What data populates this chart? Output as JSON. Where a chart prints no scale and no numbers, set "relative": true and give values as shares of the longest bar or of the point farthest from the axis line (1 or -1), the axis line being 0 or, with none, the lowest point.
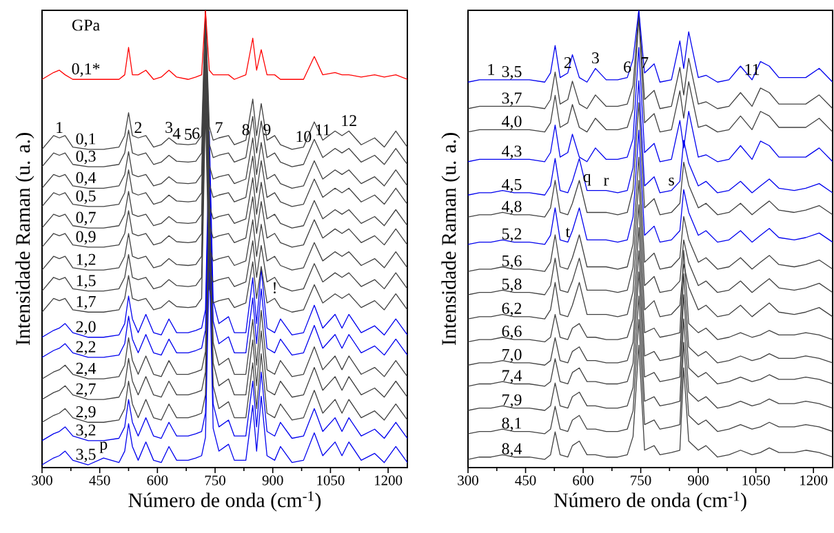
{
  "chart_data": [
    {
      "type": "line",
      "relative": true,
      "legend_title": "GPa",
      "xlabel": "Número de onda (cm$^{-1}$)",
      "ylabel": "Intensidade Raman (u. a.)",
      "xlim": [
        300,
        1250
      ],
      "xticks": [
        300,
        450,
        600,
        750,
        900,
        1050,
        1200
      ],
      "x": [
        300,
        330,
        345,
        360,
        380,
        420,
        460,
        500,
        515,
        525,
        535,
        550,
        570,
        590,
        610,
        630,
        650,
        680,
        700,
        715,
        725,
        735,
        745,
        760,
        785,
        800,
        830,
        848,
        858,
        870,
        885,
        905,
        920,
        950,
        980,
        1008,
        1030,
        1062,
        1080,
        1098,
        1130,
        1165,
        1190,
        1220,
        1250
      ],
      "series": [
        {
          "name": "0,1*",
          "color": "#ff0000",
          "values": [
            0.849,
            0.864,
            0.869,
            0.859,
            0.849,
            0.849,
            0.849,
            0.849,
            0.859,
            0.919,
            0.859,
            0.859,
            0.869,
            0.849,
            0.854,
            0.869,
            0.854,
            0.849,
            0.854,
            0.859,
            1,
            0.869,
            0.859,
            0.859,
            0.859,
            0.849,
            0.859,
            0.939,
            0.869,
            0.914,
            0.859,
            0.859,
            0.849,
            0.849,
            0.849,
            0.899,
            0.859,
            0.864,
            0.859,
            0.859,
            0.854,
            0.859,
            0.854,
            0.859,
            0.849
          ]
        },
        {
          "name": "0,1",
          "color": "#404040",
          "values": [
            0.696,
            0.726,
            0.721,
            0.726,
            0.701,
            0.696,
            0.696,
            0.701,
            0.726,
            0.776,
            0.726,
            0.721,
            0.726,
            0.701,
            0.706,
            0.721,
            0.708,
            0.706,
            0.708,
            0.726,
            1,
            0.746,
            0.716,
            0.721,
            0.726,
            0.706,
            0.716,
            0.806,
            0.726,
            0.796,
            0.716,
            0.726,
            0.706,
            0.696,
            0.701,
            0.756,
            0.716,
            0.736,
            0.726,
            0.736,
            0.706,
            0.721,
            0.701,
            0.736,
            0.701
          ]
        },
        {
          "name": "0,3",
          "color": "#404040",
          "values": [
            0.658,
            0.688,
            0.683,
            0.688,
            0.663,
            0.658,
            0.658,
            0.663,
            0.688,
            0.738,
            0.688,
            0.683,
            0.688,
            0.663,
            0.668,
            0.683,
            0.67,
            0.668,
            0.67,
            0.688,
            1,
            0.708,
            0.678,
            0.683,
            0.688,
            0.668,
            0.678,
            0.768,
            0.688,
            0.758,
            0.678,
            0.688,
            0.668,
            0.658,
            0.663,
            0.718,
            0.678,
            0.698,
            0.688,
            0.698,
            0.668,
            0.683,
            0.663,
            0.698,
            0.663
          ]
        },
        {
          "name": "0,4",
          "color": "#404040",
          "values": [
            0.611,
            0.641,
            0.636,
            0.641,
            0.616,
            0.611,
            0.611,
            0.616,
            0.641,
            0.691,
            0.641,
            0.636,
            0.641,
            0.616,
            0.621,
            0.636,
            0.623,
            0.621,
            0.623,
            0.641,
            1,
            0.661,
            0.631,
            0.636,
            0.641,
            0.621,
            0.631,
            0.721,
            0.641,
            0.711,
            0.631,
            0.641,
            0.621,
            0.611,
            0.616,
            0.671,
            0.631,
            0.651,
            0.641,
            0.651,
            0.621,
            0.636,
            0.616,
            0.651,
            0.616
          ]
        },
        {
          "name": "0,5",
          "color": "#404040",
          "values": [
            0.571,
            0.601,
            0.596,
            0.601,
            0.576,
            0.571,
            0.571,
            0.576,
            0.601,
            0.651,
            0.601,
            0.596,
            0.601,
            0.576,
            0.581,
            0.596,
            0.583,
            0.581,
            0.583,
            0.601,
            1,
            0.621,
            0.591,
            0.596,
            0.601,
            0.581,
            0.591,
            0.681,
            0.601,
            0.671,
            0.591,
            0.601,
            0.581,
            0.571,
            0.576,
            0.631,
            0.591,
            0.611,
            0.601,
            0.611,
            0.581,
            0.596,
            0.576,
            0.611,
            0.576
          ]
        },
        {
          "name": "0,7",
          "color": "#404040",
          "values": [
            0.524,
            0.554,
            0.549,
            0.554,
            0.529,
            0.524,
            0.524,
            0.529,
            0.554,
            0.604,
            0.554,
            0.549,
            0.554,
            0.529,
            0.534,
            0.549,
            0.536,
            0.534,
            0.536,
            0.554,
            0.974,
            0.574,
            0.544,
            0.549,
            0.554,
            0.534,
            0.544,
            0.634,
            0.554,
            0.624,
            0.544,
            0.554,
            0.534,
            0.524,
            0.529,
            0.584,
            0.544,
            0.564,
            0.554,
            0.564,
            0.534,
            0.549,
            0.529,
            0.564,
            0.529
          ]
        },
        {
          "name": "0,9",
          "color": "#404040",
          "values": [
            0.482,
            0.512,
            0.507,
            0.512,
            0.487,
            0.482,
            0.482,
            0.487,
            0.512,
            0.562,
            0.512,
            0.507,
            0.512,
            0.487,
            0.492,
            0.507,
            0.494,
            0.492,
            0.494,
            0.512,
            0.932,
            0.532,
            0.502,
            0.507,
            0.512,
            0.492,
            0.502,
            0.592,
            0.512,
            0.582,
            0.502,
            0.512,
            0.492,
            0.482,
            0.487,
            0.542,
            0.502,
            0.522,
            0.512,
            0.522,
            0.492,
            0.507,
            0.487,
            0.522,
            0.487
          ]
        },
        {
          "name": "1,2",
          "color": "#404040",
          "values": [
            0.432,
            0.462,
            0.457,
            0.462,
            0.437,
            0.432,
            0.432,
            0.437,
            0.462,
            0.512,
            0.462,
            0.457,
            0.462,
            0.437,
            0.442,
            0.457,
            0.444,
            0.442,
            0.444,
            0.462,
            0.882,
            0.482,
            0.452,
            0.457,
            0.462,
            0.442,
            0.452,
            0.542,
            0.462,
            0.532,
            0.452,
            0.462,
            0.442,
            0.432,
            0.437,
            0.492,
            0.452,
            0.472,
            0.462,
            0.472,
            0.442,
            0.457,
            0.437,
            0.472,
            0.437
          ]
        },
        {
          "name": "1,5",
          "color": "#404040",
          "values": [
            0.386,
            0.416,
            0.411,
            0.416,
            0.391,
            0.386,
            0.386,
            0.391,
            0.416,
            0.466,
            0.416,
            0.411,
            0.416,
            0.391,
            0.396,
            0.411,
            0.398,
            0.396,
            0.398,
            0.416,
            0.836,
            0.436,
            0.406,
            0.411,
            0.416,
            0.396,
            0.406,
            0.496,
            0.416,
            0.486,
            0.406,
            0.416,
            0.396,
            0.386,
            0.391,
            0.446,
            0.406,
            0.426,
            0.416,
            0.426,
            0.396,
            0.411,
            0.391,
            0.426,
            0.391
          ]
        },
        {
          "name": "1,7",
          "color": "#404040",
          "values": [
            0.34,
            0.37,
            0.365,
            0.37,
            0.345,
            0.34,
            0.34,
            0.345,
            0.37,
            0.42,
            0.37,
            0.365,
            0.37,
            0.345,
            0.35,
            0.365,
            0.352,
            0.35,
            0.352,
            0.37,
            0.79,
            0.39,
            0.36,
            0.365,
            0.37,
            0.35,
            0.36,
            0.45,
            0.37,
            0.44,
            0.36,
            0.37,
            0.35,
            0.34,
            0.345,
            0.4,
            0.36,
            0.38,
            0.37,
            0.38,
            0.35,
            0.365,
            0.345,
            0.38,
            0.345
          ]
        },
        {
          "name": "2,0",
          "color": "#0000ee",
          "values": [
            0.285,
            0.3,
            0.305,
            0.315,
            0.295,
            0.285,
            0.285,
            0.29,
            0.315,
            0.375,
            0.325,
            0.295,
            0.335,
            0.295,
            0.29,
            0.325,
            0.295,
            0.295,
            0.3,
            0.305,
            0.345,
            0.735,
            0.365,
            0.315,
            0.33,
            0.295,
            0.295,
            0.415,
            0.315,
            0.435,
            0.305,
            0.295,
            0.325,
            0.29,
            0.295,
            0.355,
            0.305,
            0.335,
            0.305,
            0.335,
            0.295,
            0.31,
            0.29,
            0.325,
            0.29
          ]
        },
        {
          "name": "2,2",
          "color": "#0000ee",
          "values": [
            0.241,
            0.256,
            0.261,
            0.271,
            0.251,
            0.241,
            0.241,
            0.246,
            0.271,
            0.331,
            0.281,
            0.251,
            0.291,
            0.251,
            0.246,
            0.281,
            0.251,
            0.251,
            0.256,
            0.261,
            0.301,
            0.691,
            0.321,
            0.271,
            0.286,
            0.251,
            0.251,
            0.371,
            0.271,
            0.391,
            0.261,
            0.251,
            0.281,
            0.246,
            0.251,
            0.311,
            0.261,
            0.291,
            0.261,
            0.291,
            0.251,
            0.266,
            0.246,
            0.281,
            0.246
          ]
        },
        {
          "name": "2,4",
          "color": "#404040",
          "values": [
            0.194,
            0.209,
            0.214,
            0.224,
            0.204,
            0.194,
            0.194,
            0.199,
            0.224,
            0.284,
            0.234,
            0.204,
            0.244,
            0.204,
            0.199,
            0.234,
            0.204,
            0.204,
            0.209,
            0.214,
            0.254,
            0.644,
            0.274,
            0.224,
            0.239,
            0.204,
            0.204,
            0.324,
            0.224,
            0.344,
            0.214,
            0.204,
            0.234,
            0.199,
            0.204,
            0.264,
            0.214,
            0.244,
            0.214,
            0.244,
            0.204,
            0.219,
            0.199,
            0.234,
            0.199
          ]
        },
        {
          "name": "2,7",
          "color": "#404040",
          "values": [
            0.149,
            0.164,
            0.169,
            0.179,
            0.159,
            0.149,
            0.149,
            0.154,
            0.179,
            0.239,
            0.189,
            0.159,
            0.199,
            0.159,
            0.154,
            0.189,
            0.159,
            0.159,
            0.164,
            0.169,
            0.209,
            0.599,
            0.229,
            0.179,
            0.194,
            0.159,
            0.159,
            0.279,
            0.179,
            0.299,
            0.169,
            0.159,
            0.189,
            0.154,
            0.159,
            0.219,
            0.169,
            0.199,
            0.169,
            0.199,
            0.159,
            0.174,
            0.154,
            0.189,
            0.154
          ]
        },
        {
          "name": "2,9",
          "color": "#404040",
          "values": [
            0.099,
            0.114,
            0.119,
            0.129,
            0.109,
            0.099,
            0.099,
            0.104,
            0.129,
            0.189,
            0.139,
            0.109,
            0.149,
            0.109,
            0.104,
            0.139,
            0.109,
            0.109,
            0.114,
            0.119,
            0.159,
            0.549,
            0.179,
            0.129,
            0.144,
            0.109,
            0.109,
            0.229,
            0.129,
            0.249,
            0.119,
            0.109,
            0.139,
            0.104,
            0.109,
            0.169,
            0.119,
            0.149,
            0.119,
            0.149,
            0.109,
            0.124,
            0.104,
            0.139,
            0.104
          ]
        },
        {
          "name": "3,2",
          "color": "#0000ee",
          "values": [
            0.059,
            0.074,
            0.079,
            0.089,
            0.069,
            0.059,
            0.059,
            0.064,
            0.089,
            0.149,
            0.099,
            0.069,
            0.109,
            0.069,
            0.064,
            0.099,
            0.069,
            0.069,
            0.074,
            0.079,
            0.119,
            0.509,
            0.139,
            0.089,
            0.104,
            0.069,
            0.069,
            0.189,
            0.089,
            0.209,
            0.079,
            0.069,
            0.099,
            0.064,
            0.069,
            0.129,
            0.079,
            0.109,
            0.079,
            0.109,
            0.069,
            0.084,
            0.064,
            0.099,
            0.064
          ]
        },
        {
          "name": "3,5",
          "color": "#0000ee",
          "values": [
            0.006,
            0.021,
            0.026,
            0.036,
            0.016,
            0.006,
            0.021,
            0.011,
            0.036,
            0.096,
            0.046,
            0.016,
            0.056,
            0.016,
            0.011,
            0.046,
            0.016,
            0.016,
            0.021,
            0.026,
            0.066,
            0.456,
            0.086,
            0.036,
            0.051,
            0.016,
            0.016,
            0.136,
            0.036,
            0.156,
            0.026,
            0.016,
            0.046,
            0.011,
            0.016,
            0.076,
            0.026,
            0.056,
            0.026,
            0.056,
            0.016,
            0.031,
            0.011,
            0.046,
            0.011
          ]
        }
      ],
      "annotations": [
        {
          "text": "1",
          "x": 345,
          "y": 0.721
        },
        {
          "text": "2",
          "x": 550,
          "y": 0.721
        },
        {
          "text": "3",
          "x": 630,
          "y": 0.721
        },
        {
          "text": "4",
          "x": 650,
          "y": 0.708
        },
        {
          "text": "5",
          "x": 680,
          "y": 0.706
        },
        {
          "text": "6",
          "x": 700,
          "y": 0.708
        },
        {
          "text": "7",
          "x": 760,
          "y": 0.721
        },
        {
          "text": "8",
          "x": 830,
          "y": 0.716
        },
        {
          "text": "9",
          "x": 885,
          "y": 0.716
        },
        {
          "text": "10",
          "x": 980,
          "y": 0.701
        },
        {
          "text": "11",
          "x": 1030,
          "y": 0.716
        },
        {
          "text": "12",
          "x": 1098,
          "y": 0.736
        },
        {
          "text": "!",
          "x": 905,
          "y": 0.37
        },
        {
          "text": "p",
          "x": 460,
          "y": 0.021
        }
      ]
    },
    {
      "type": "line",
      "relative": true,
      "xlabel": "Número de onda (cm$^{-1}$)",
      "ylabel": "Intensidade Raman (u. a.)",
      "xlim": [
        300,
        1250
      ],
      "xticks": [
        300,
        450,
        600,
        750,
        900,
        1050,
        1200
      ],
      "x": [
        300,
        330,
        360,
        390,
        420,
        460,
        500,
        515,
        527,
        540,
        560,
        572,
        590,
        610,
        632,
        660,
        690,
        715,
        730,
        745,
        760,
        785,
        800,
        830,
        852,
        862,
        875,
        900,
        920,
        950,
        980,
        1010,
        1040,
        1062,
        1085,
        1110,
        1150,
        1180,
        1215,
        1250
      ],
      "series": [
        {
          "name": "3,5",
          "color": "#0000ee",
          "values": [
            0.843,
            0.848,
            0.848,
            0.848,
            0.848,
            0.848,
            0.843,
            0.863,
            0.923,
            0.853,
            0.863,
            0.903,
            0.853,
            0.843,
            0.873,
            0.848,
            0.848,
            0.853,
            0.893,
            1,
            0.863,
            0.883,
            0.843,
            0.848,
            0.933,
            0.873,
            0.953,
            0.853,
            0.858,
            0.843,
            0.848,
            0.878,
            0.848,
            0.888,
            0.878,
            0.853,
            0.853,
            0.853,
            0.873,
            0.843
          ]
        },
        {
          "name": "3,7",
          "color": "#404040",
          "values": [
            0.785,
            0.79,
            0.79,
            0.79,
            0.79,
            0.79,
            0.785,
            0.805,
            0.865,
            0.795,
            0.805,
            0.845,
            0.795,
            0.785,
            0.815,
            0.79,
            0.79,
            0.795,
            0.835,
            1,
            0.805,
            0.825,
            0.785,
            0.79,
            0.875,
            0.815,
            0.895,
            0.795,
            0.8,
            0.785,
            0.79,
            0.82,
            0.79,
            0.83,
            0.82,
            0.795,
            0.795,
            0.795,
            0.815,
            0.785
          ]
        },
        {
          "name": "4,0",
          "color": "#404040",
          "values": [
            0.734,
            0.739,
            0.739,
            0.739,
            0.739,
            0.739,
            0.734,
            0.754,
            0.814,
            0.744,
            0.754,
            0.794,
            0.744,
            0.734,
            0.764,
            0.739,
            0.739,
            0.744,
            0.784,
            0.984,
            0.754,
            0.774,
            0.734,
            0.739,
            0.824,
            0.764,
            0.844,
            0.744,
            0.749,
            0.734,
            0.739,
            0.769,
            0.739,
            0.779,
            0.769,
            0.744,
            0.744,
            0.744,
            0.764,
            0.734
          ]
        },
        {
          "name": "4,3",
          "color": "#0000ee",
          "values": [
            0.669,
            0.674,
            0.674,
            0.674,
            0.674,
            0.674,
            0.669,
            0.689,
            0.749,
            0.679,
            0.689,
            0.729,
            0.679,
            0.669,
            0.699,
            0.674,
            0.674,
            0.679,
            0.719,
            0.919,
            0.689,
            0.709,
            0.669,
            0.674,
            0.759,
            0.699,
            0.779,
            0.679,
            0.684,
            0.669,
            0.674,
            0.704,
            0.674,
            0.714,
            0.704,
            0.679,
            0.679,
            0.679,
            0.699,
            0.669
          ]
        },
        {
          "name": "4,5",
          "color": "#0000ee",
          "values": [
            0.596,
            0.601,
            0.601,
            0.606,
            0.601,
            0.601,
            0.596,
            0.616,
            0.676,
            0.606,
            0.601,
            0.626,
            0.676,
            0.606,
            0.606,
            0.606,
            0.601,
            0.606,
            0.656,
            0.846,
            0.616,
            0.636,
            0.601,
            0.606,
            0.626,
            0.716,
            0.666,
            0.616,
            0.626,
            0.601,
            0.606,
            0.626,
            0.601,
            0.616,
            0.631,
            0.611,
            0.606,
            0.611,
            0.621,
            0.601
          ]
        },
        {
          "name": "4,8",
          "color": "#404040",
          "values": [
            0.548,
            0.553,
            0.553,
            0.558,
            0.553,
            0.553,
            0.548,
            0.568,
            0.628,
            0.558,
            0.553,
            0.578,
            0.628,
            0.558,
            0.558,
            0.558,
            0.553,
            0.558,
            0.608,
            0.798,
            0.568,
            0.588,
            0.553,
            0.558,
            0.578,
            0.668,
            0.618,
            0.568,
            0.578,
            0.553,
            0.558,
            0.578,
            0.553,
            0.568,
            0.583,
            0.563,
            0.558,
            0.563,
            0.573,
            0.553
          ]
        },
        {
          "name": "5,2",
          "color": "#0000ee",
          "values": [
            0.488,
            0.493,
            0.493,
            0.498,
            0.493,
            0.493,
            0.488,
            0.508,
            0.568,
            0.498,
            0.493,
            0.518,
            0.568,
            0.498,
            0.498,
            0.498,
            0.493,
            0.498,
            0.548,
            0.738,
            0.508,
            0.528,
            0.493,
            0.498,
            0.518,
            0.608,
            0.558,
            0.508,
            0.518,
            0.493,
            0.498,
            0.518,
            0.493,
            0.508,
            0.523,
            0.503,
            0.498,
            0.503,
            0.513,
            0.493
          ]
        },
        {
          "name": "5,6",
          "color": "#404040",
          "values": [
            0.429,
            0.434,
            0.434,
            0.439,
            0.434,
            0.434,
            0.429,
            0.449,
            0.509,
            0.439,
            0.434,
            0.459,
            0.509,
            0.439,
            0.439,
            0.439,
            0.434,
            0.439,
            0.489,
            0.679,
            0.449,
            0.469,
            0.434,
            0.439,
            0.459,
            0.549,
            0.499,
            0.449,
            0.459,
            0.434,
            0.439,
            0.459,
            0.434,
            0.449,
            0.464,
            0.444,
            0.439,
            0.444,
            0.454,
            0.434
          ]
        },
        {
          "name": "5,8",
          "color": "#404040",
          "values": [
            0.378,
            0.383,
            0.383,
            0.388,
            0.383,
            0.383,
            0.378,
            0.398,
            0.458,
            0.388,
            0.383,
            0.408,
            0.458,
            0.388,
            0.388,
            0.388,
            0.383,
            0.388,
            0.438,
            0.628,
            0.398,
            0.418,
            0.383,
            0.388,
            0.408,
            0.498,
            0.448,
            0.398,
            0.408,
            0.383,
            0.388,
            0.408,
            0.383,
            0.398,
            0.413,
            0.393,
            0.388,
            0.393,
            0.403,
            0.383
          ]
        },
        {
          "name": "6,2",
          "color": "#404040",
          "values": [
            0.325,
            0.33,
            0.33,
            0.335,
            0.33,
            0.33,
            0.325,
            0.345,
            0.405,
            0.335,
            0.33,
            0.355,
            0.405,
            0.335,
            0.335,
            0.335,
            0.33,
            0.335,
            0.385,
            0.575,
            0.345,
            0.365,
            0.33,
            0.335,
            0.355,
            0.445,
            0.395,
            0.345,
            0.355,
            0.33,
            0.335,
            0.355,
            0.33,
            0.345,
            0.36,
            0.34,
            0.335,
            0.34,
            0.35,
            0.33
          ]
        },
        {
          "name": "6,6",
          "color": "#404040",
          "values": [
            0.275,
            0.28,
            0.28,
            0.285,
            0.28,
            0.28,
            0.275,
            0.285,
            0.335,
            0.285,
            0.28,
            0.305,
            0.315,
            0.285,
            0.285,
            0.28,
            0.28,
            0.285,
            0.325,
            0.525,
            0.295,
            0.305,
            0.285,
            0.29,
            0.295,
            0.475,
            0.315,
            0.295,
            0.305,
            0.28,
            0.285,
            0.295,
            0.285,
            0.29,
            0.3,
            0.29,
            0.29,
            0.295,
            0.29,
            0.28
          ]
        },
        {
          "name": "7,0",
          "color": "#404040",
          "values": [
            0.224,
            0.229,
            0.229,
            0.234,
            0.229,
            0.229,
            0.224,
            0.234,
            0.284,
            0.234,
            0.229,
            0.254,
            0.264,
            0.234,
            0.234,
            0.229,
            0.229,
            0.234,
            0.274,
            0.474,
            0.244,
            0.254,
            0.234,
            0.239,
            0.244,
            0.424,
            0.264,
            0.244,
            0.254,
            0.229,
            0.234,
            0.244,
            0.234,
            0.239,
            0.249,
            0.239,
            0.239,
            0.244,
            0.239,
            0.229
          ]
        },
        {
          "name": "7,4",
          "color": "#404040",
          "values": [
            0.178,
            0.183,
            0.183,
            0.188,
            0.183,
            0.183,
            0.178,
            0.188,
            0.238,
            0.188,
            0.183,
            0.208,
            0.218,
            0.188,
            0.188,
            0.183,
            0.183,
            0.188,
            0.228,
            0.428,
            0.198,
            0.208,
            0.188,
            0.193,
            0.198,
            0.378,
            0.218,
            0.198,
            0.208,
            0.183,
            0.188,
            0.198,
            0.188,
            0.193,
            0.203,
            0.193,
            0.193,
            0.198,
            0.193,
            0.183
          ]
        },
        {
          "name": "7,9",
          "color": "#404040",
          "values": [
            0.125,
            0.13,
            0.13,
            0.135,
            0.13,
            0.13,
            0.125,
            0.135,
            0.185,
            0.135,
            0.13,
            0.155,
            0.165,
            0.135,
            0.135,
            0.13,
            0.13,
            0.135,
            0.175,
            0.375,
            0.145,
            0.155,
            0.135,
            0.14,
            0.145,
            0.325,
            0.165,
            0.145,
            0.155,
            0.13,
            0.135,
            0.145,
            0.135,
            0.14,
            0.15,
            0.14,
            0.14,
            0.145,
            0.14,
            0.13
          ]
        },
        {
          "name": "8,1",
          "color": "#404040",
          "values": [
            0.074,
            0.079,
            0.079,
            0.084,
            0.079,
            0.079,
            0.074,
            0.084,
            0.134,
            0.084,
            0.079,
            0.104,
            0.114,
            0.084,
            0.084,
            0.079,
            0.079,
            0.084,
            0.124,
            0.324,
            0.094,
            0.104,
            0.084,
            0.089,
            0.094,
            0.274,
            0.114,
            0.094,
            0.104,
            0.079,
            0.084,
            0.094,
            0.084,
            0.089,
            0.099,
            0.089,
            0.089,
            0.094,
            0.089,
            0.079
          ]
        },
        {
          "name": "8,4",
          "color": "#404040",
          "values": [
            0.018,
            0.023,
            0.023,
            0.028,
            0.023,
            0.023,
            0.018,
            0.028,
            0.078,
            0.028,
            0.023,
            0.048,
            0.058,
            0.028,
            0.028,
            0.023,
            0.023,
            0.028,
            0.068,
            0.268,
            0.038,
            0.048,
            0.028,
            0.033,
            0.038,
            0.218,
            0.058,
            0.038,
            0.048,
            0.023,
            0.028,
            0.038,
            0.028,
            0.033,
            0.043,
            0.033,
            0.033,
            0.038,
            0.033,
            0.023
          ]
        }
      ],
      "annotations": [
        {
          "text": "1",
          "x": 360,
          "y": 0.848
        },
        {
          "text": "2",
          "x": 560,
          "y": 0.863
        },
        {
          "text": "3",
          "x": 632,
          "y": 0.873
        },
        {
          "text": "6",
          "x": 715,
          "y": 0.853
        },
        {
          "text": "7",
          "x": 760,
          "y": 0.863
        },
        {
          "text": "11",
          "x": 1040,
          "y": 0.848
        },
        {
          "text": "q",
          "x": 610,
          "y": 0.606
        },
        {
          "text": "r",
          "x": 660,
          "y": 0.606
        },
        {
          "text": "s",
          "x": 830,
          "y": 0.606
        },
        {
          "text": "t",
          "x": 560,
          "y": 0.493
        }
      ]
    }
  ]
}
